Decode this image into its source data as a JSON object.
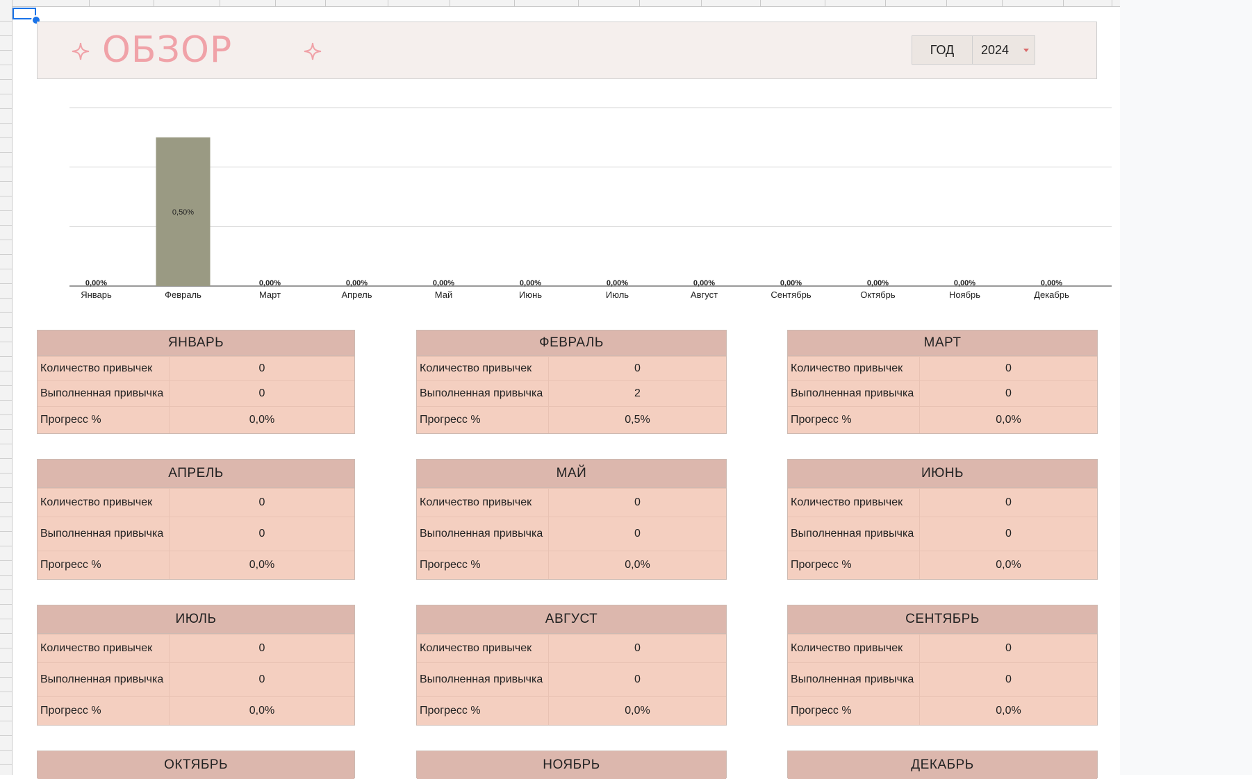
{
  "header": {
    "title": "ОБЗОР",
    "year_label": "ГОД",
    "year_value": "2024"
  },
  "colors": {
    "bar": "#9a9a83",
    "title": "#f0a2a8",
    "card_bg": "#f4cfc0",
    "card_header": "#dcb7ad"
  },
  "chart_data": {
    "type": "bar",
    "categories": [
      "Январь",
      "Февраль",
      "Март",
      "Апрель",
      "Май",
      "Июнь",
      "Июль",
      "Август",
      "Сентябрь",
      "Октябрь",
      "Ноябрь",
      "Декабрь"
    ],
    "values": [
      0,
      0.5,
      0,
      0,
      0,
      0,
      0,
      0,
      0,
      0,
      0,
      0
    ],
    "data_labels": [
      "0,00%",
      "0,50%",
      "0,00%",
      "0,00%",
      "0,00%",
      "0,00%",
      "0,00%",
      "0,00%",
      "0,00%",
      "0,00%",
      "0,00%",
      "0,00%"
    ],
    "ylim": [
      0,
      0.6
    ],
    "grid": true,
    "title": "",
    "xlabel": "",
    "ylabel": ""
  },
  "months": [
    {
      "name": "ЯНВАРЬ",
      "habits_label": "Количество привычек",
      "done_label": "Выполненная привычка",
      "progress_label": "Прогресс %",
      "habits": "0",
      "done": "0",
      "progress": "0,0%"
    },
    {
      "name": "ФЕВРАЛЬ",
      "habits_label": "Количество привычек",
      "done_label": "Выполненная привычка",
      "progress_label": "Прогресс %",
      "habits": "0",
      "done": "2",
      "progress": "0,5%"
    },
    {
      "name": "МАРТ",
      "habits_label": "Количество привычек",
      "done_label": "Выполненная привычка",
      "progress_label": "Прогресс %",
      "habits": "0",
      "done": "0",
      "progress": "0,0%"
    },
    {
      "name": "АПРЕЛЬ",
      "habits_label": "Количество привычек",
      "done_label": "Выполненная привычка",
      "progress_label": "Прогресс %",
      "habits": "0",
      "done": "0",
      "progress": "0,0%"
    },
    {
      "name": "МАЙ",
      "habits_label": "Количество привычек",
      "done_label": "Выполненная привычка",
      "progress_label": "Прогресс %",
      "habits": "0",
      "done": "0",
      "progress": "0,0%"
    },
    {
      "name": "ИЮНЬ",
      "habits_label": "Количество привычек",
      "done_label": "Выполненная привычка",
      "progress_label": "Прогресс %",
      "habits": "0",
      "done": "0",
      "progress": "0,0%"
    },
    {
      "name": "ИЮЛЬ",
      "habits_label": "Количество привычек",
      "done_label": "Выполненная привычка",
      "progress_label": "Прогресс %",
      "habits": "0",
      "done": "0",
      "progress": "0,0%"
    },
    {
      "name": "АВГУСТ",
      "habits_label": "Количество привычек",
      "done_label": "Выполненная привычка",
      "progress_label": "Прогресс %",
      "habits": "0",
      "done": "0",
      "progress": "0,0%"
    },
    {
      "name": "СЕНТЯБРЬ",
      "habits_label": "Количество привычек",
      "done_label": "Выполненная привычка",
      "progress_label": "Прогресс %",
      "habits": "0",
      "done": "0",
      "progress": "0,0%"
    },
    {
      "name": "ОКТЯБРЬ"
    },
    {
      "name": "НОЯБРЬ"
    },
    {
      "name": "ДЕКАБРЬ"
    }
  ]
}
